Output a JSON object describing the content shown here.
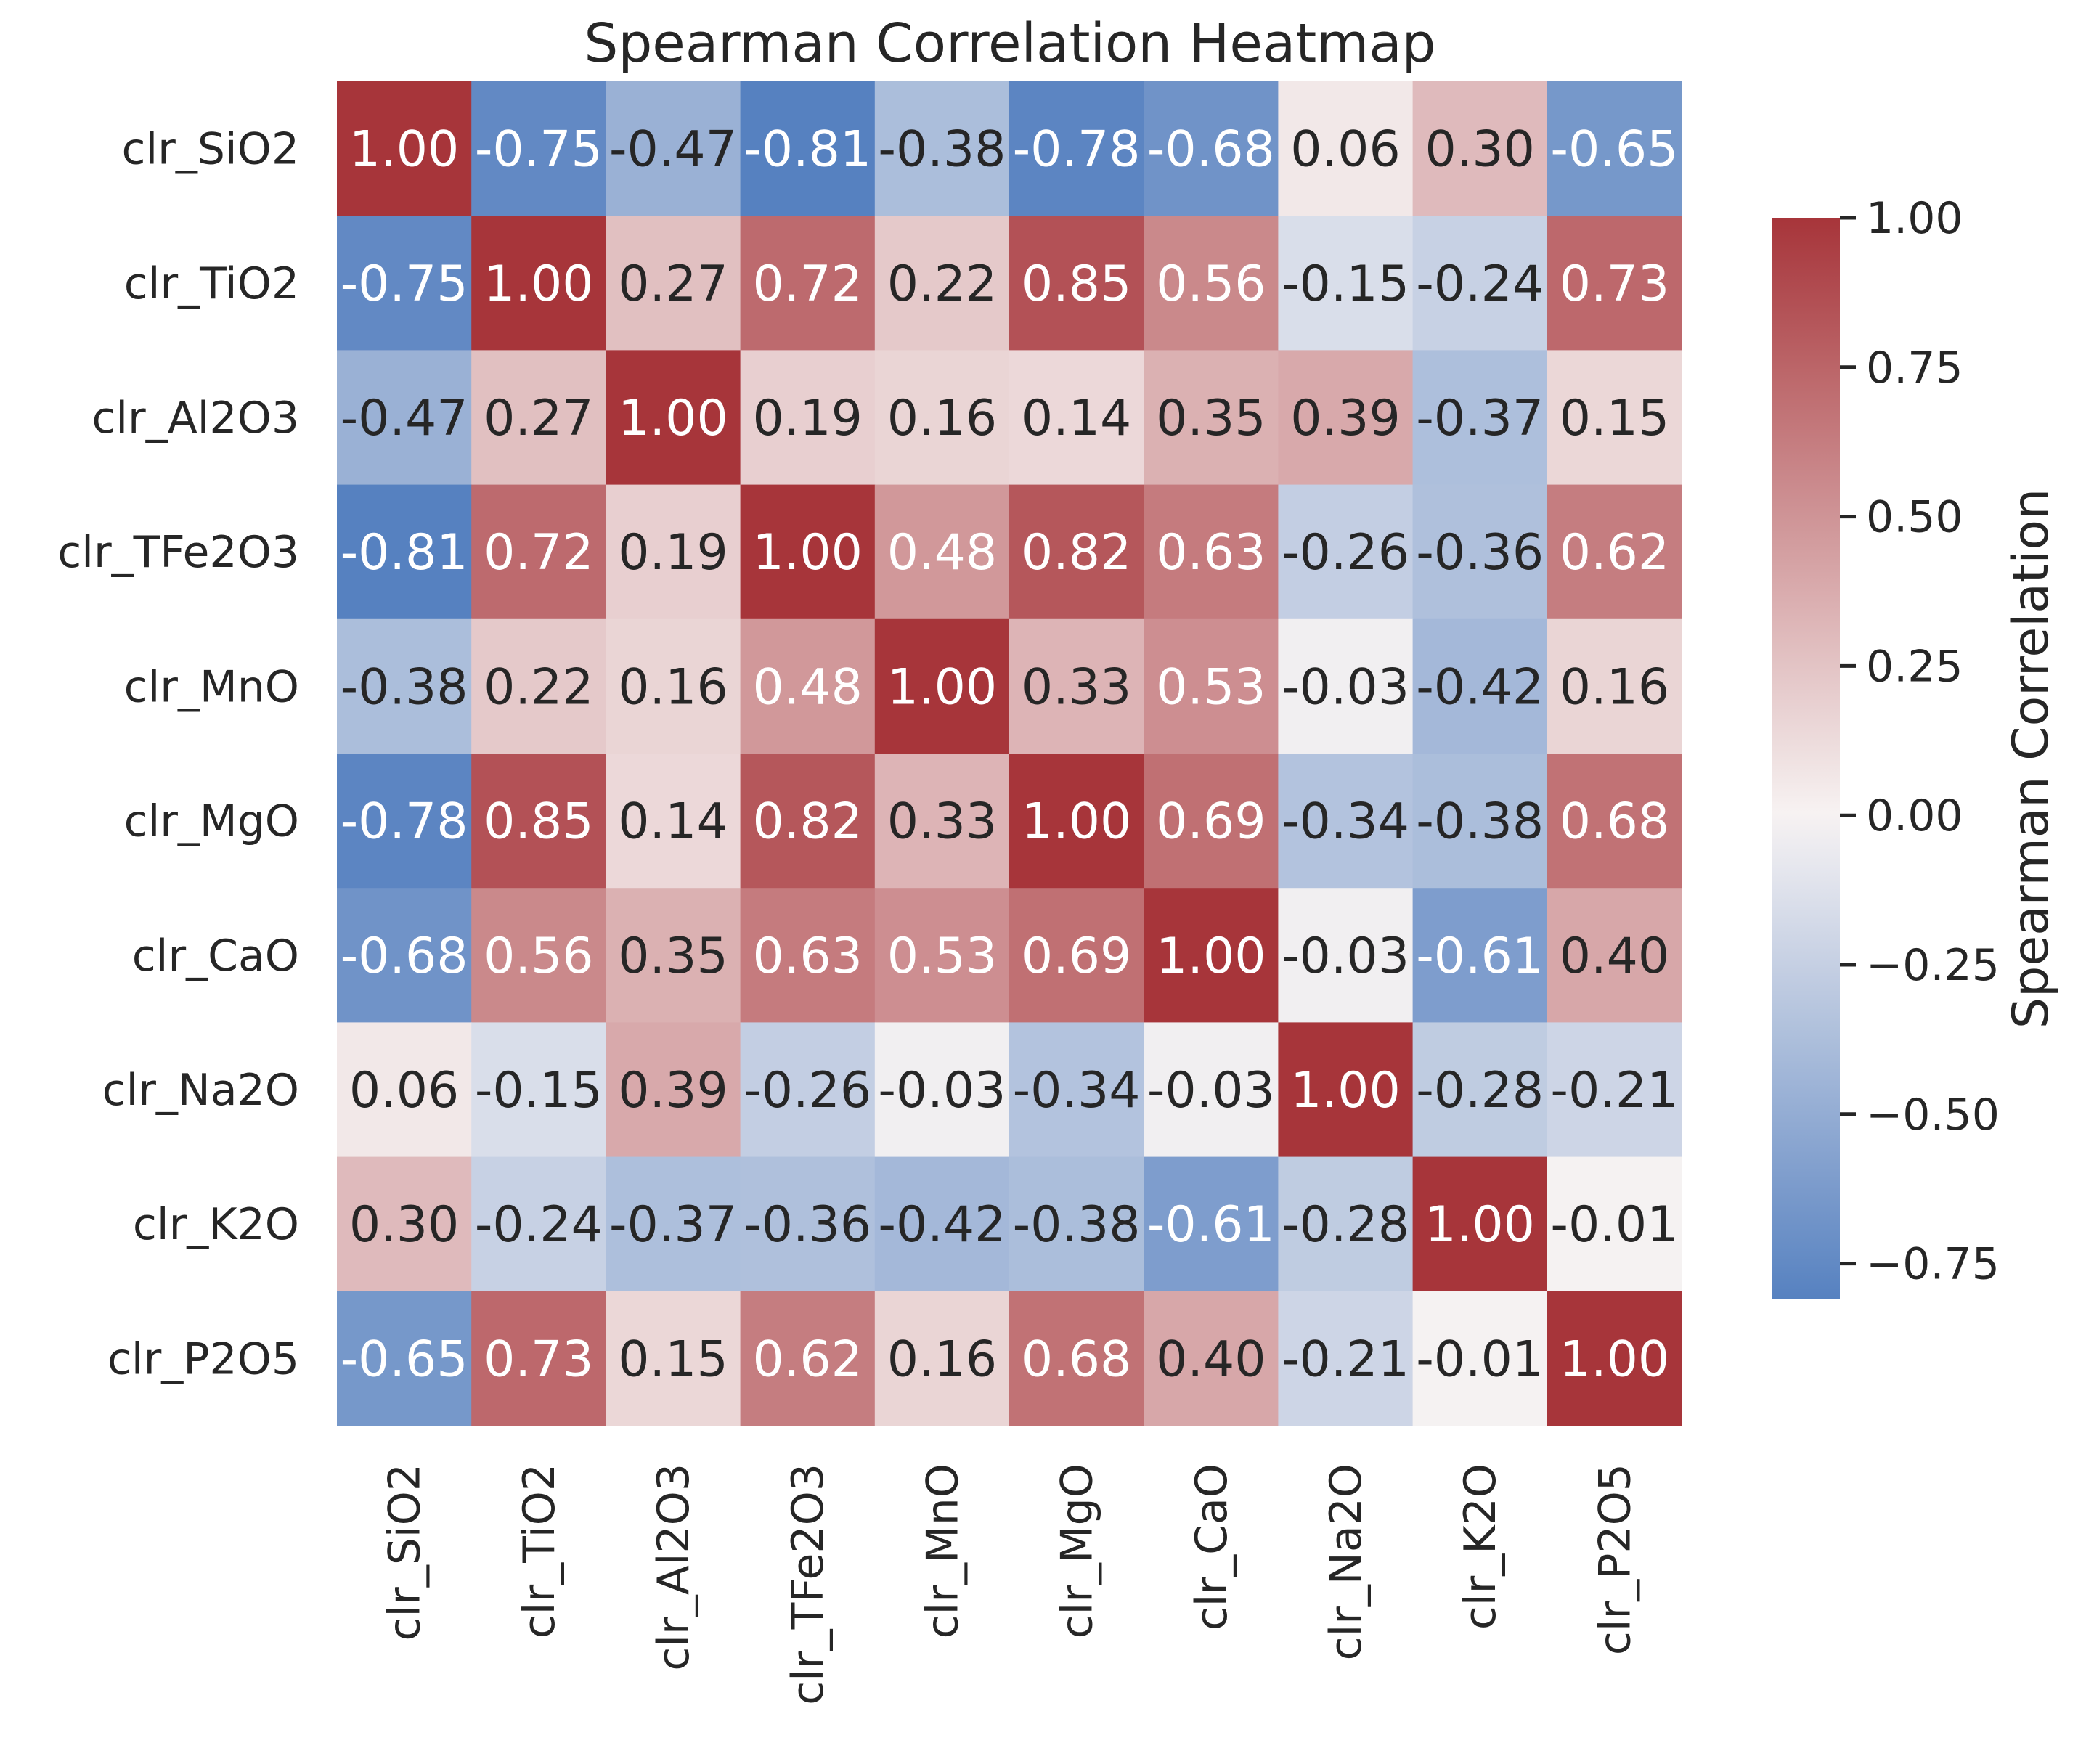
{
  "chart_data": {
    "type": "heatmap",
    "title": "Spearman Correlation Heatmap",
    "rows": [
      "clr_SiO2",
      "clr_TiO2",
      "clr_Al2O3",
      "clr_TFe2O3",
      "clr_MnO",
      "clr_MgO",
      "clr_CaO",
      "clr_Na2O",
      "clr_K2O",
      "clr_P2O5"
    ],
    "cols": [
      "clr_SiO2",
      "clr_TiO2",
      "clr_Al2O3",
      "clr_TFe2O3",
      "clr_MnO",
      "clr_MgO",
      "clr_CaO",
      "clr_Na2O",
      "clr_K2O",
      "clr_P2O5"
    ],
    "values": [
      [
        1.0,
        -0.75,
        -0.47,
        -0.81,
        -0.38,
        -0.78,
        -0.68,
        0.06,
        0.3,
        -0.65
      ],
      [
        -0.75,
        1.0,
        0.27,
        0.72,
        0.22,
        0.85,
        0.56,
        -0.15,
        -0.24,
        0.73
      ],
      [
        -0.47,
        0.27,
        1.0,
        0.19,
        0.16,
        0.14,
        0.35,
        0.39,
        -0.37,
        0.15
      ],
      [
        -0.81,
        0.72,
        0.19,
        1.0,
        0.48,
        0.82,
        0.63,
        -0.26,
        -0.36,
        0.62
      ],
      [
        -0.38,
        0.22,
        0.16,
        0.48,
        1.0,
        0.33,
        0.53,
        -0.03,
        -0.42,
        0.16
      ],
      [
        -0.78,
        0.85,
        0.14,
        0.82,
        0.33,
        1.0,
        0.69,
        -0.34,
        -0.38,
        0.68
      ],
      [
        -0.68,
        0.56,
        0.35,
        0.63,
        0.53,
        0.69,
        1.0,
        -0.03,
        -0.61,
        0.4
      ],
      [
        0.06,
        -0.15,
        0.39,
        -0.26,
        -0.03,
        -0.34,
        -0.03,
        1.0,
        -0.28,
        -0.21
      ],
      [
        0.3,
        -0.24,
        -0.37,
        -0.36,
        -0.42,
        -0.38,
        -0.61,
        -0.28,
        1.0,
        -0.01
      ],
      [
        -0.65,
        0.73,
        0.15,
        0.62,
        0.16,
        0.68,
        0.4,
        -0.21,
        -0.01,
        1.0
      ]
    ],
    "colorbar": {
      "label": "Spearman Correlation",
      "range": [
        -0.81,
        1.0
      ],
      "ticks": [
        1.0,
        0.75,
        0.5,
        0.25,
        0.0,
        -0.25,
        -0.5,
        -0.75
      ],
      "tick_labels": [
        "1.00",
        "0.75",
        "0.50",
        "0.25",
        "0.00",
        "−0.25",
        "−0.50",
        "−0.75"
      ]
    },
    "colormap": "vlag",
    "colors": {
      "low": "#5681c0",
      "mid": "#f7f3f3",
      "high": "#a7353a"
    },
    "number_format": "2 decimals",
    "grid": false
  }
}
